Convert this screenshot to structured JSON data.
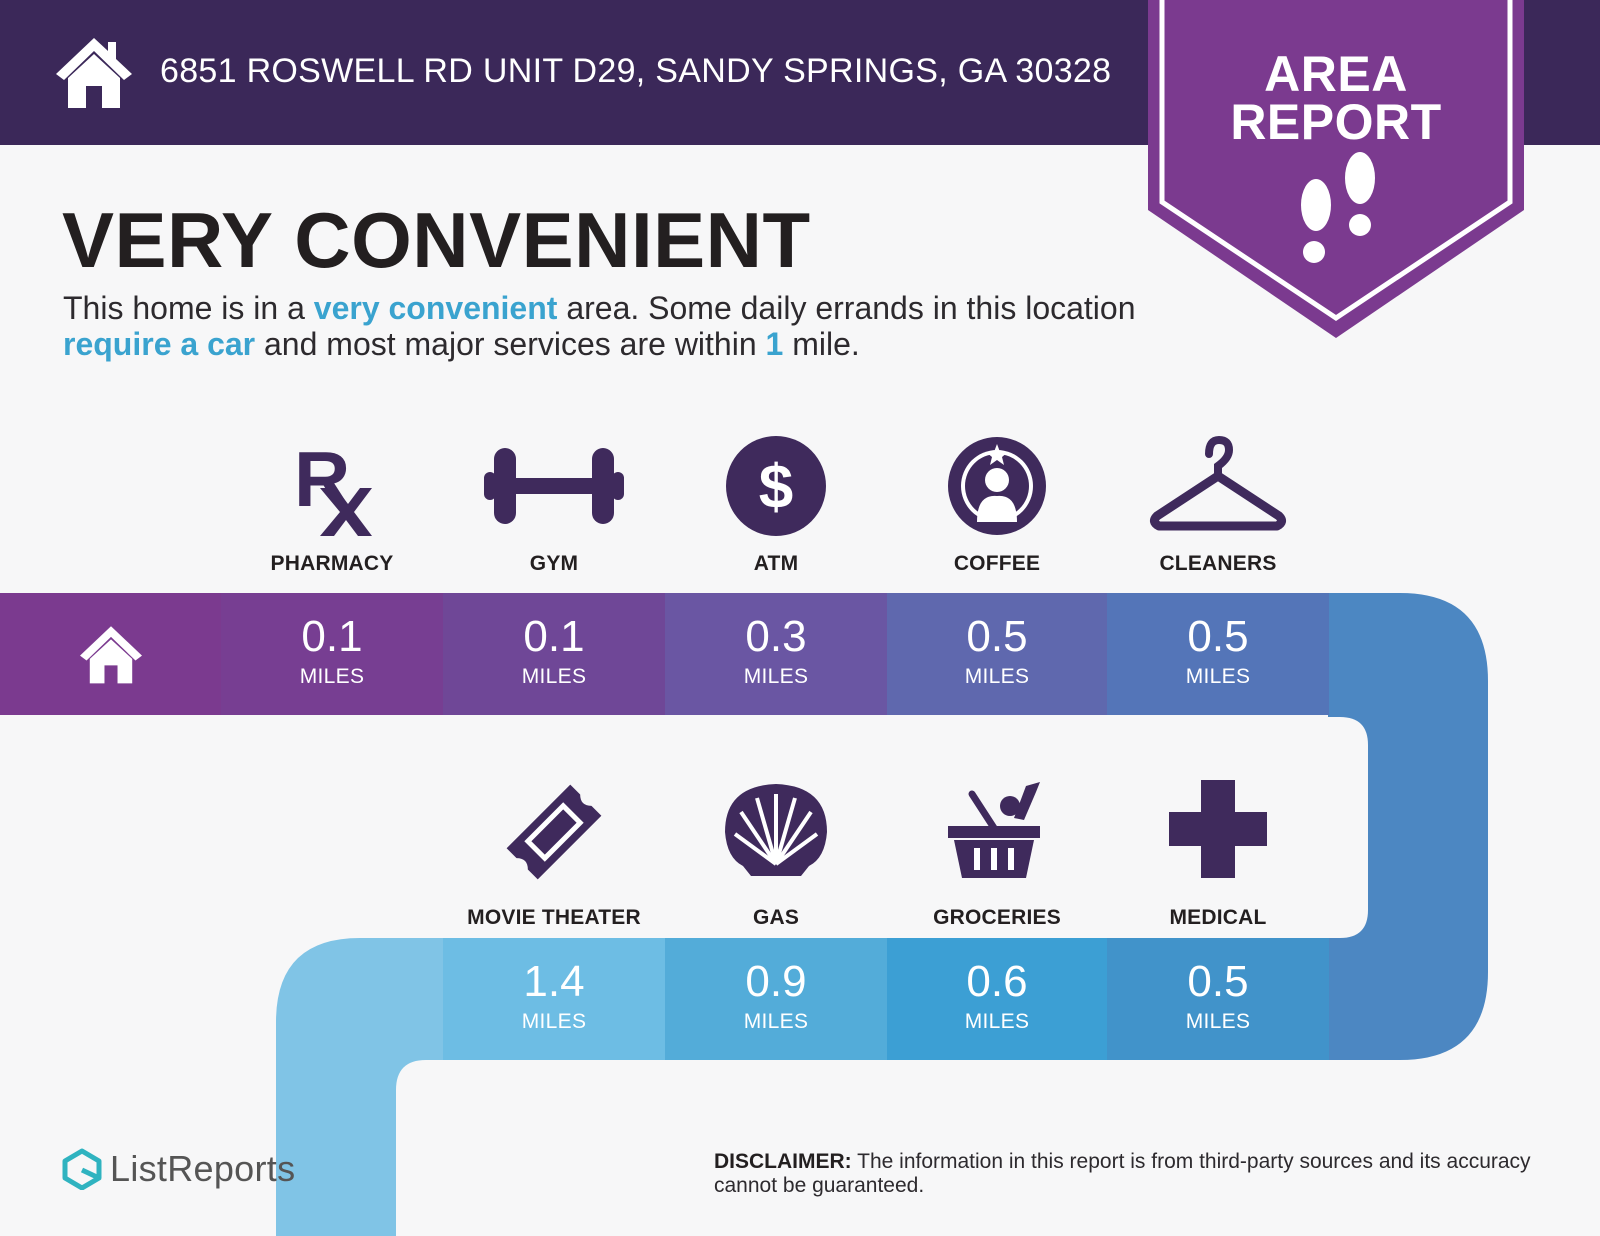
{
  "header": {
    "address": "6851 ROSWELL RD UNIT D29, SANDY SPRINGS, GA 30328",
    "home_icon": "home-icon"
  },
  "badge": {
    "line1": "AREA",
    "line2": "REPORT",
    "icon": "footprints-icon"
  },
  "headline": "VERY CONVENIENT",
  "intro": {
    "p1": "This home is in a ",
    "h1": "very convenient",
    "p2": " area. Some daily errands in this location ",
    "h2": "require a car",
    "p3": " and most major services are within ",
    "h3": "1",
    "p4": " mile."
  },
  "row1": [
    {
      "label": "PHARMACY",
      "value": "0.1",
      "unit": "MILES",
      "icon": "rx-icon"
    },
    {
      "label": "GYM",
      "value": "0.1",
      "unit": "MILES",
      "icon": "dumbbell-icon"
    },
    {
      "label": "ATM",
      "value": "0.3",
      "unit": "MILES",
      "icon": "dollar-icon"
    },
    {
      "label": "COFFEE",
      "value": "0.5",
      "unit": "MILES",
      "icon": "coffee-logo-icon"
    },
    {
      "label": "CLEANERS",
      "value": "0.5",
      "unit": "MILES",
      "icon": "hanger-icon"
    }
  ],
  "row2": [
    {
      "label": "MOVIE THEATER",
      "value": "1.4",
      "unit": "MILES",
      "icon": "ticket-icon"
    },
    {
      "label": "GAS",
      "value": "0.9",
      "unit": "MILES",
      "icon": "shell-icon"
    },
    {
      "label": "GROCERIES",
      "value": "0.6",
      "unit": "MILES",
      "icon": "basket-icon"
    },
    {
      "label": "MEDICAL",
      "value": "0.5",
      "unit": "MILES",
      "icon": "cross-icon"
    }
  ],
  "footer": {
    "logo": "ListReports",
    "disclaimer_label": "DISCLAIMER:",
    "disclaimer_text": " The information in this report is from third-party sources and its accuracy cannot be guaranteed."
  },
  "colors": {
    "header": "#3b2859",
    "badge": "#7b3a8f",
    "icon": "#3f2a5c",
    "highlight": "#3aa3cf",
    "band_start": "#7b3a8f",
    "band_end": "#7ec5e7"
  }
}
